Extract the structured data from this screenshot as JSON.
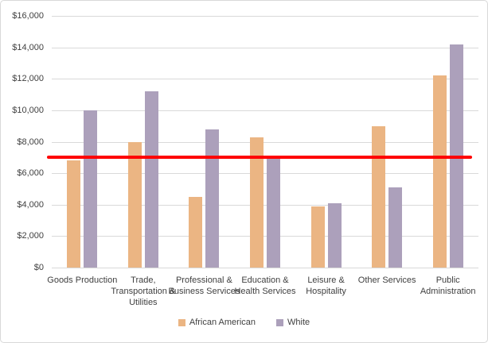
{
  "chart_data": {
    "type": "bar",
    "title": "",
    "categories": [
      "Goods Production",
      "Trade, Transportation & Utilities",
      "Professional & Business Services",
      "Education & Health Services",
      "Leisure & Hospitality",
      "Other Services",
      "Public Administration"
    ],
    "series": [
      {
        "name": "African American",
        "color": "#EBB583",
        "values": [
          6800,
          8000,
          4500,
          8300,
          3900,
          9000,
          12200
        ]
      },
      {
        "name": "White",
        "color": "#ACA0BB",
        "values": [
          10000,
          11200,
          8800,
          7000,
          4100,
          5100,
          14200
        ]
      }
    ],
    "reference_line": {
      "value": 7000,
      "color": "#FF0000"
    },
    "y_axis": {
      "min": 0,
      "max": 16000,
      "step": 2000,
      "tick_labels": [
        "$0",
        "$2,000",
        "$4,000",
        "$6,000",
        "$8,000",
        "$10,000",
        "$12,000",
        "$14,000",
        "$16,000"
      ]
    },
    "xlabel": "",
    "ylabel": "",
    "legend": {
      "position": "bottom",
      "entries": [
        "African American",
        "White"
      ]
    },
    "grid": true,
    "colors": {
      "gridline": "#d9d9d9",
      "text": "#404040",
      "background": "#ffffff",
      "border": "#d8d8d8"
    }
  }
}
